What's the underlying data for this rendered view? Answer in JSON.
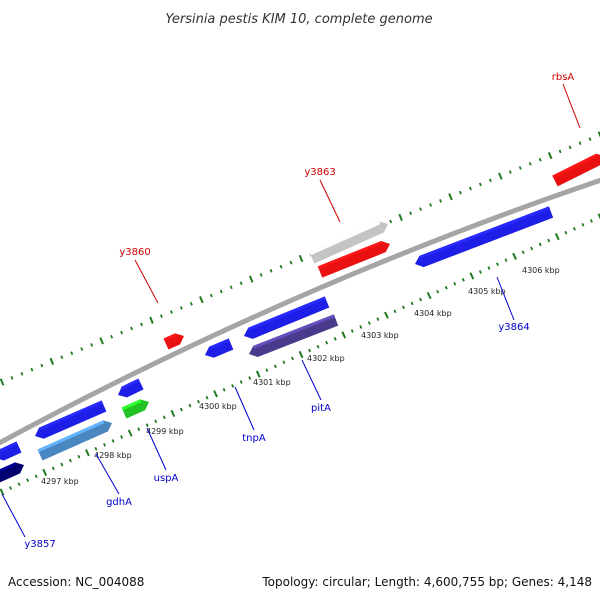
{
  "title": "Yersinia pestis KIM 10, complete genome",
  "footer": {
    "accession": "Accession: NC_004088",
    "summary": "Topology: circular; Length: 4,600,755 bp; Genes: 4,148"
  },
  "colors": {
    "backbone": "#a5a5a5",
    "tick": "#1f7a1f",
    "label_forward": "#cc0000",
    "label_reverse": "#0000cc",
    "feature_blue": "#1e1ee6",
    "feature_red": "#e81010",
    "feature_navy": "#00006e",
    "feature_lightblue": "#4a86c0",
    "feature_purple": "#4a3a8c",
    "feature_green": "#22c222",
    "feature_gray": "#c4c4c4"
  },
  "scale_labels": [
    "4297 kbp",
    "4298 kbp",
    "4299 kbp",
    "4300 kbp",
    "4301 kbp",
    "4302 kbp",
    "4303 kbp",
    "4304 kbp",
    "4305 kbp",
    "4306 kbp"
  ],
  "gene_labels": [
    {
      "text": "rbsA",
      "strand": "forward"
    },
    {
      "text": "y3863",
      "strand": "forward"
    },
    {
      "text": "y3860",
      "strand": "forward"
    },
    {
      "text": "y3864",
      "strand": "reverse"
    },
    {
      "text": "pitA",
      "strand": "reverse"
    },
    {
      "text": "tnpA",
      "strand": "reverse"
    },
    {
      "text": "uspA",
      "strand": "reverse"
    },
    {
      "text": "gdhA",
      "strand": "reverse"
    },
    {
      "text": "y3857",
      "strand": "reverse"
    }
  ]
}
